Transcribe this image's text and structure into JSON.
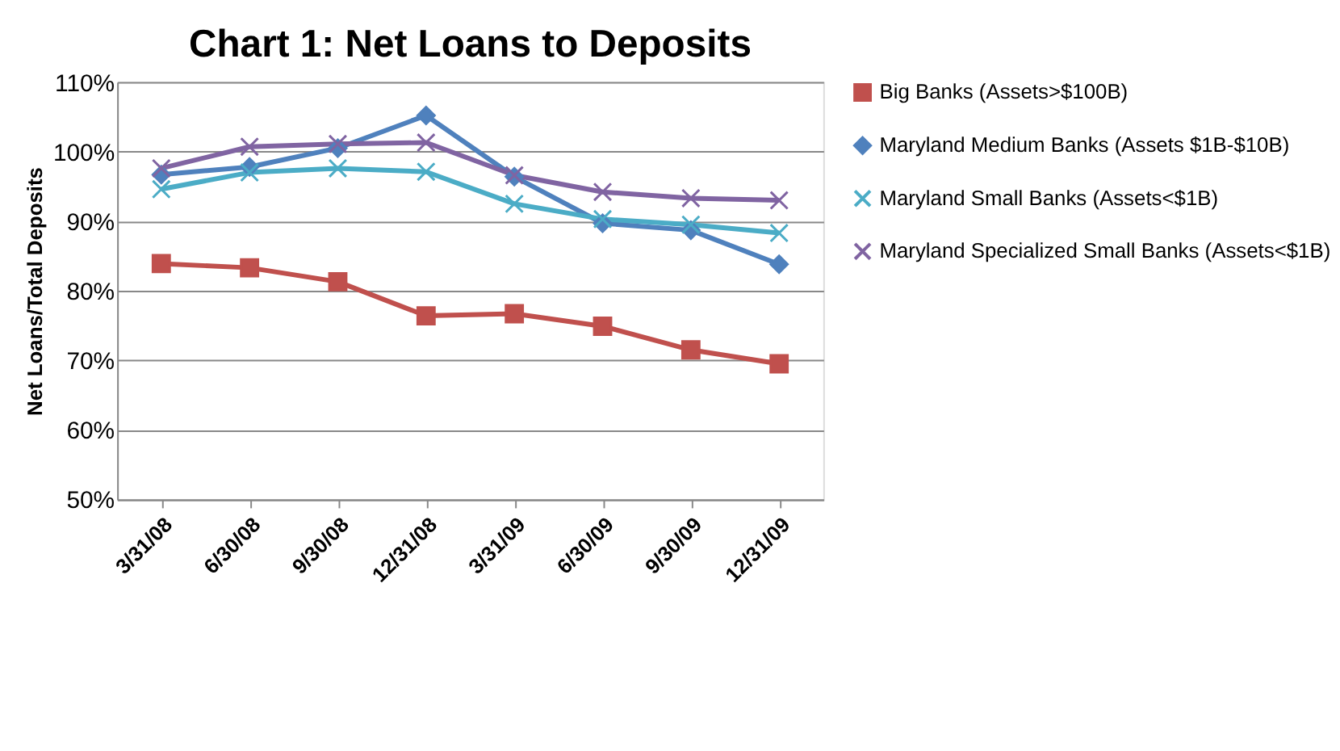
{
  "chart_data": {
    "type": "line",
    "title": "Chart 1: Net Loans to Deposits",
    "ylabel": "Net Loans/Total Deposits",
    "categories": [
      "3/31/08",
      "6/30/08",
      "9/30/08",
      "12/31/08",
      "3/31/09",
      "6/30/09",
      "9/30/09",
      "12/31/09"
    ],
    "series": [
      {
        "name": "Big Banks (Assets>$100B)",
        "color": "#c0504d",
        "marker": "square",
        "values": [
          83.9,
          83.3,
          81.3,
          76.4,
          76.7,
          74.9,
          71.5,
          69.5
        ]
      },
      {
        "name": "Maryland Medium Banks (Assets $1B-$10B)",
        "color": "#4f81bd",
        "marker": "diamond",
        "values": [
          96.7,
          97.8,
          100.5,
          105.2,
          96.4,
          89.7,
          88.7,
          83.8
        ]
      },
      {
        "name": "Maryland Small Banks (Assets<$1B)",
        "color": "#4bacc6",
        "marker": "cross",
        "values": [
          94.6,
          97.0,
          97.6,
          97.1,
          92.5,
          90.3,
          89.5,
          88.3
        ]
      },
      {
        "name": "Maryland Specialized Small Banks (Assets<$1B)",
        "color": "#8064a2",
        "marker": "cross",
        "values": [
          97.6,
          100.7,
          101.1,
          101.3,
          96.6,
          94.2,
          93.3,
          93.0
        ]
      }
    ],
    "ylim": [
      50,
      110
    ],
    "yticks": [
      {
        "value": 50,
        "label": "50%"
      },
      {
        "value": 60,
        "label": "60%"
      },
      {
        "value": 70,
        "label": "70%"
      },
      {
        "value": 80,
        "label": "80%"
      },
      {
        "value": 90,
        "label": "90%"
      },
      {
        "value": 100,
        "label": "100%"
      },
      {
        "value": 110,
        "label": "110%"
      }
    ],
    "grid": "y",
    "legend": "right",
    "line_style": "solid"
  }
}
